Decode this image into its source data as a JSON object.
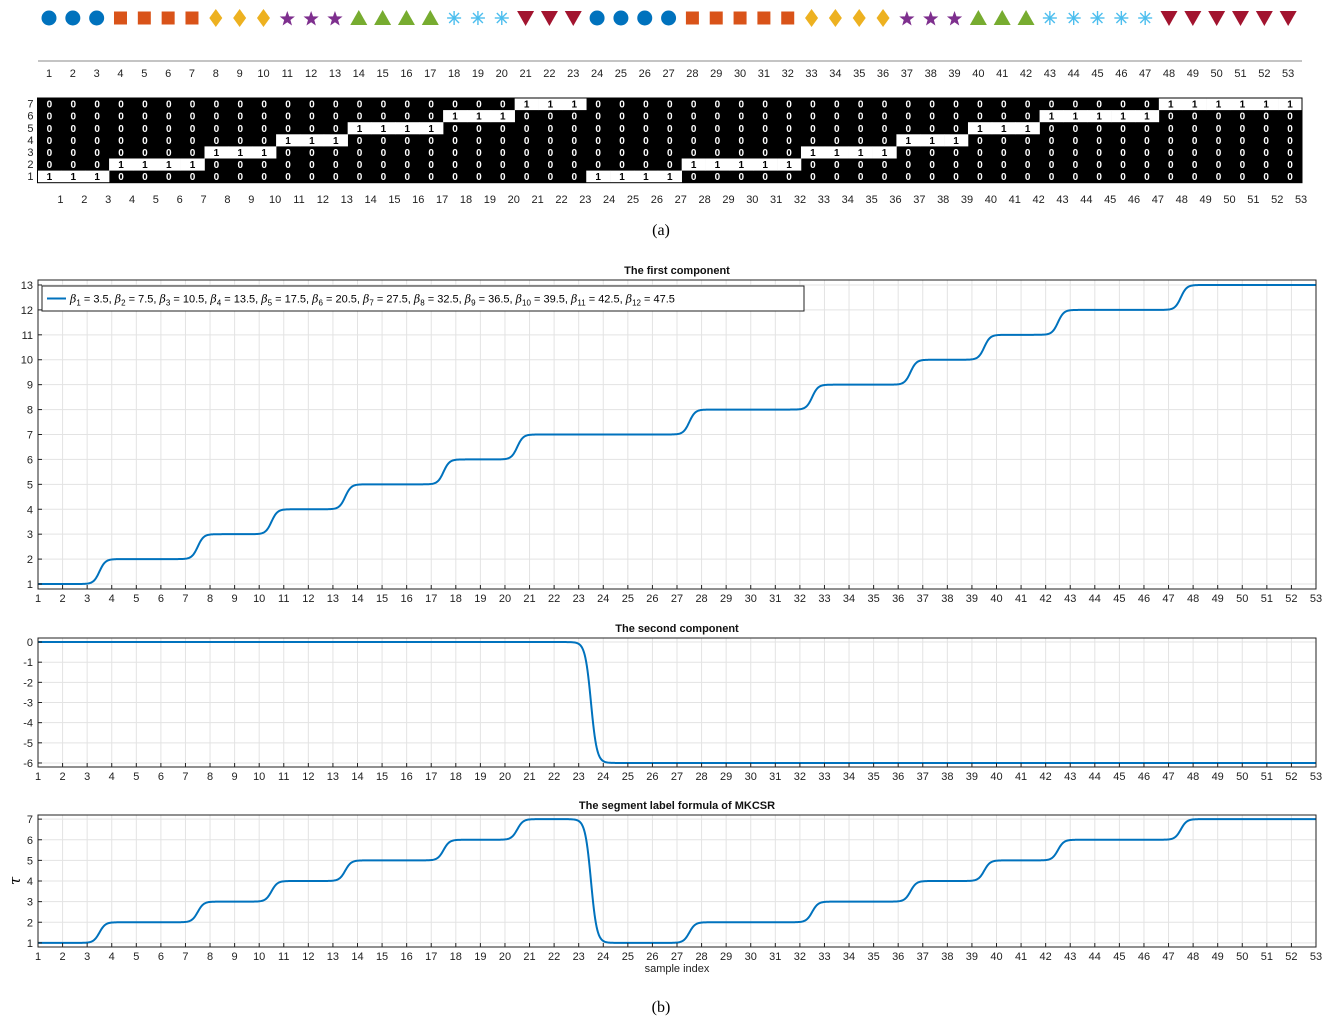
{
  "colors": {
    "line": "#0072BD",
    "grid": "#e3e3e3",
    "classes": [
      "#0072BD",
      "#D95319",
      "#EDB120",
      "#7E2F8E",
      "#77AC30",
      "#4DBEEE",
      "#A2142F"
    ]
  },
  "icons": [
    "circle-icon",
    "square-icon",
    "diamond-icon",
    "star-icon",
    "triangle-up-icon",
    "asterisk-icon",
    "triangle-down-icon"
  ],
  "caption_a": "(a)",
  "caption_b": "(b)",
  "chart_data": [
    {
      "type": "scatter",
      "kind": "class-marker-strip",
      "x": [
        1,
        2,
        3,
        4,
        5,
        6,
        7,
        8,
        9,
        10,
        11,
        12,
        13,
        14,
        15,
        16,
        17,
        18,
        19,
        20,
        21,
        22,
        23,
        24,
        25,
        26,
        27,
        28,
        29,
        30,
        31,
        32,
        33,
        34,
        35,
        36,
        37,
        38,
        39,
        40,
        41,
        42,
        43,
        44,
        45,
        46,
        47,
        48,
        49,
        50,
        51,
        52,
        53
      ],
      "classes": [
        1,
        1,
        1,
        2,
        2,
        2,
        2,
        3,
        3,
        3,
        4,
        4,
        4,
        5,
        5,
        5,
        5,
        6,
        6,
        6,
        7,
        7,
        7,
        1,
        1,
        1,
        1,
        2,
        2,
        2,
        2,
        2,
        3,
        3,
        3,
        3,
        4,
        4,
        4,
        5,
        5,
        5,
        6,
        6,
        6,
        6,
        6,
        7,
        7,
        7,
        7,
        7,
        7
      ],
      "xticks": [
        "1",
        "2",
        "3",
        "4",
        "5",
        "6",
        "7",
        "8",
        "9",
        "10",
        "11",
        "12",
        "13",
        "14",
        "15",
        "16",
        "17",
        "18",
        "19",
        "20",
        "21",
        "22",
        "23",
        "24",
        "25",
        "26",
        "27",
        "28",
        "29",
        "30",
        "31",
        "32",
        "33",
        "34",
        "35",
        "36",
        "37",
        "38",
        "39",
        "40",
        "41",
        "42",
        "43",
        "44",
        "45",
        "46",
        "47",
        "48",
        "49",
        "50",
        "51",
        "52",
        "53"
      ]
    },
    {
      "type": "heatmap",
      "kind": "binary-indicator-matrix",
      "rows": [
        7,
        6,
        5,
        4,
        3,
        2,
        1
      ],
      "row_labels": [
        "7",
        "6",
        "5",
        "4",
        "3",
        "2",
        "1"
      ],
      "cols": 53,
      "col_labels": [
        "1",
        "2",
        "3",
        "4",
        "5",
        "6",
        "7",
        "8",
        "9",
        "10",
        "11",
        "12",
        "13",
        "14",
        "15",
        "16",
        "17",
        "18",
        "19",
        "20",
        "21",
        "22",
        "23",
        "24",
        "25",
        "26",
        "27",
        "28",
        "29",
        "30",
        "31",
        "32",
        "33",
        "34",
        "35",
        "36",
        "37",
        "38",
        "39",
        "40",
        "41",
        "42",
        "43",
        "44",
        "45",
        "46",
        "47",
        "48",
        "49",
        "50",
        "51",
        "52",
        "53"
      ],
      "active_row_per_column": [
        1,
        1,
        1,
        2,
        2,
        2,
        2,
        3,
        3,
        3,
        4,
        4,
        4,
        5,
        5,
        5,
        5,
        6,
        6,
        6,
        7,
        7,
        7,
        1,
        1,
        1,
        1,
        2,
        2,
        2,
        2,
        2,
        3,
        3,
        3,
        3,
        4,
        4,
        4,
        5,
        5,
        5,
        6,
        6,
        6,
        6,
        6,
        7,
        7,
        7,
        7,
        7,
        7
      ],
      "values": [
        "0",
        "1"
      ]
    },
    {
      "type": "line",
      "title": "The first component",
      "xlim": [
        1,
        53
      ],
      "ylim": [
        0.8,
        13.2
      ],
      "yticks": [
        "1",
        "2",
        "3",
        "4",
        "5",
        "6",
        "7",
        "8",
        "9",
        "10",
        "11",
        "12",
        "13"
      ],
      "xticks": [
        "1",
        "2",
        "3",
        "4",
        "5",
        "6",
        "7",
        "8",
        "9",
        "10",
        "11",
        "12",
        "13",
        "14",
        "15",
        "16",
        "17",
        "18",
        "19",
        "20",
        "21",
        "22",
        "23",
        "24",
        "25",
        "26",
        "27",
        "28",
        "29",
        "30",
        "31",
        "32",
        "33",
        "34",
        "35",
        "36",
        "37",
        "38",
        "39",
        "40",
        "41",
        "42",
        "43",
        "44",
        "45",
        "46",
        "47",
        "48",
        "49",
        "50",
        "51",
        "52",
        "53"
      ],
      "base": 1,
      "steps": [
        {
          "beta": 3.5,
          "delta": 1
        },
        {
          "beta": 7.5,
          "delta": 1
        },
        {
          "beta": 10.5,
          "delta": 1
        },
        {
          "beta": 13.5,
          "delta": 1
        },
        {
          "beta": 17.5,
          "delta": 1
        },
        {
          "beta": 20.5,
          "delta": 1
        },
        {
          "beta": 27.5,
          "delta": 1
        },
        {
          "beta": 32.5,
          "delta": 1
        },
        {
          "beta": 36.5,
          "delta": 1
        },
        {
          "beta": 39.5,
          "delta": 1
        },
        {
          "beta": 42.5,
          "delta": 1
        },
        {
          "beta": 47.5,
          "delta": 1
        }
      ],
      "legend": [
        {
          "sym": "β",
          "sub": "1",
          "val": " = 3.5, "
        },
        {
          "sym": "β",
          "sub": "2",
          "val": " = 7.5, "
        },
        {
          "sym": "β",
          "sub": "3",
          "val": " = 10.5, "
        },
        {
          "sym": "β",
          "sub": "4",
          "val": " = 13.5, "
        },
        {
          "sym": "β",
          "sub": "5",
          "val": " = 17.5, "
        },
        {
          "sym": "β",
          "sub": "6",
          "val": " = 20.5, "
        },
        {
          "sym": "β",
          "sub": "7",
          "val": " = 27.5, "
        },
        {
          "sym": "β",
          "sub": "8",
          "val": " = 32.5, "
        },
        {
          "sym": "β",
          "sub": "9",
          "val": " = 36.5, "
        },
        {
          "sym": "β",
          "sub": "10",
          "val": " = 39.5, "
        },
        {
          "sym": "β",
          "sub": "11",
          "val": " = 42.5, "
        },
        {
          "sym": "β",
          "sub": "12",
          "val": " = 47.5"
        }
      ],
      "legend_location": "top-left",
      "grid": true
    },
    {
      "type": "line",
      "title": "The second component",
      "xlim": [
        1,
        53
      ],
      "ylim": [
        -6.2,
        0.2
      ],
      "yticks": [
        "0",
        "-1",
        "-2",
        "-3",
        "-4",
        "-5",
        "-6"
      ],
      "xticks": [
        "1",
        "2",
        "3",
        "4",
        "5",
        "6",
        "7",
        "8",
        "9",
        "10",
        "11",
        "12",
        "13",
        "14",
        "15",
        "16",
        "17",
        "18",
        "19",
        "20",
        "21",
        "22",
        "23",
        "24",
        "25",
        "26",
        "27",
        "28",
        "29",
        "30",
        "31",
        "32",
        "33",
        "34",
        "35",
        "36",
        "37",
        "38",
        "39",
        "40",
        "41",
        "42",
        "43",
        "44",
        "45",
        "46",
        "47",
        "48",
        "49",
        "50",
        "51",
        "52",
        "53"
      ],
      "base": 0,
      "steps": [
        {
          "beta": 23.5,
          "delta": -6
        }
      ],
      "grid": true
    },
    {
      "type": "line",
      "title": "The segment label formula of MKCSR",
      "xlabel": "sample index",
      "ylabel": "𝜏",
      "xlim": [
        1,
        53
      ],
      "ylim": [
        0.8,
        7.2
      ],
      "yticks": [
        "1",
        "2",
        "3",
        "4",
        "5",
        "6",
        "7"
      ],
      "xticks": [
        "1",
        "2",
        "3",
        "4",
        "5",
        "6",
        "7",
        "8",
        "9",
        "10",
        "11",
        "12",
        "13",
        "14",
        "15",
        "16",
        "17",
        "18",
        "19",
        "20",
        "21",
        "22",
        "23",
        "24",
        "25",
        "26",
        "27",
        "28",
        "29",
        "30",
        "31",
        "32",
        "33",
        "34",
        "35",
        "36",
        "37",
        "38",
        "39",
        "40",
        "41",
        "42",
        "43",
        "44",
        "45",
        "46",
        "47",
        "48",
        "49",
        "50",
        "51",
        "52",
        "53"
      ],
      "base": 1,
      "steps": [
        {
          "beta": 3.5,
          "delta": 1
        },
        {
          "beta": 7.5,
          "delta": 1
        },
        {
          "beta": 10.5,
          "delta": 1
        },
        {
          "beta": 13.5,
          "delta": 1
        },
        {
          "beta": 17.5,
          "delta": 1
        },
        {
          "beta": 20.5,
          "delta": 1
        },
        {
          "beta": 23.5,
          "delta": -6
        },
        {
          "beta": 27.5,
          "delta": 1
        },
        {
          "beta": 32.5,
          "delta": 1
        },
        {
          "beta": 36.5,
          "delta": 1
        },
        {
          "beta": 39.5,
          "delta": 1
        },
        {
          "beta": 42.5,
          "delta": 1
        },
        {
          "beta": 47.5,
          "delta": 1
        }
      ],
      "grid": true
    }
  ]
}
